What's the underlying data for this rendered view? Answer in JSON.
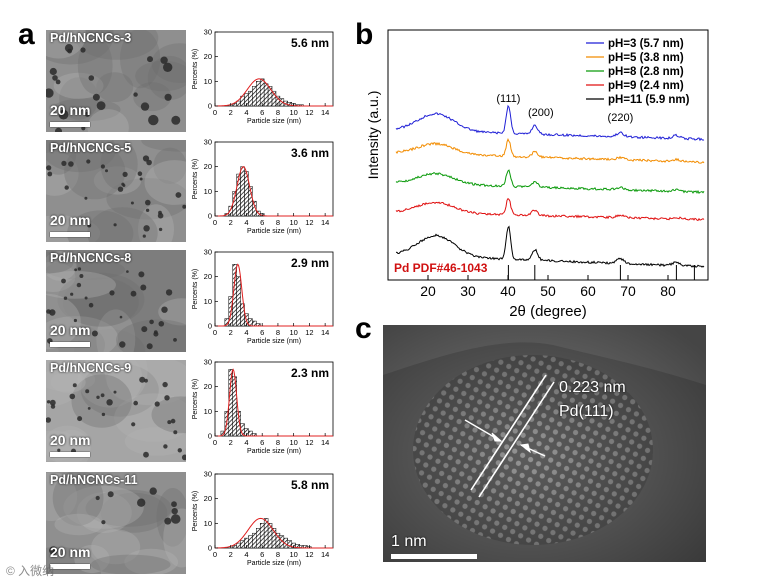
{
  "panels": {
    "a": "a",
    "b": "b",
    "c": "c"
  },
  "tem_images": [
    {
      "label": "Pd/hNCNCs-3",
      "scale": "20 nm"
    },
    {
      "label": "Pd/hNCNCs-5",
      "scale": "20 nm"
    },
    {
      "label": "Pd/hNCNCs-8",
      "scale": "20 nm"
    },
    {
      "label": "Pd/hNCNCs-9",
      "scale": "20 nm"
    },
    {
      "label": "Pd/hNCNCs-11",
      "scale": "20 nm"
    }
  ],
  "histogram_axis": {
    "xlabel": "Particle size (nm)",
    "ylabel": "Percents (%)",
    "x_ticks": [
      "0",
      "2",
      "4",
      "6",
      "8",
      "10",
      "12",
      "14"
    ],
    "y_ticks": [
      "0",
      "10",
      "20",
      "30"
    ]
  },
  "chart_data": [
    {
      "type": "bar",
      "title": "5.6 nm",
      "xlabel": "Particle size (nm)",
      "ylabel": "Percents (%)",
      "xlim": [
        0,
        15
      ],
      "ylim": [
        0,
        30
      ],
      "bin_width": 0.5,
      "bins": [
        2.5,
        3,
        3.5,
        4,
        4.5,
        5,
        5.5,
        6,
        6.5,
        7,
        7.5,
        8,
        8.5,
        9,
        9.5,
        10,
        10.5,
        11
      ],
      "values": [
        1,
        2,
        4,
        5,
        6,
        8,
        10,
        11,
        9,
        8,
        6,
        4,
        3,
        2,
        1.5,
        1,
        0.5,
        0.5
      ],
      "fit_mean": 5.6,
      "fit_sigma": 1.5,
      "fit_peak": 11
    },
    {
      "type": "bar",
      "title": "3.6 nm",
      "xlabel": "Particle size (nm)",
      "ylabel": "Percents (%)",
      "xlim": [
        0,
        15
      ],
      "ylim": [
        0,
        30
      ],
      "bin_width": 0.5,
      "bins": [
        1.5,
        2,
        2.5,
        3,
        3.5,
        4,
        4.5,
        5,
        5.5,
        6
      ],
      "values": [
        1,
        4,
        10,
        17,
        20,
        18,
        12,
        6,
        2,
        1
      ],
      "fit_mean": 3.6,
      "fit_sigma": 0.8,
      "fit_peak": 20
    },
    {
      "type": "bar",
      "title": "2.9 nm",
      "xlabel": "Particle size (nm)",
      "ylabel": "Percents (%)",
      "xlim": [
        0,
        15
      ],
      "ylim": [
        0,
        30
      ],
      "bin_width": 0.5,
      "bins": [
        1.5,
        2,
        2.5,
        3,
        3.5,
        4,
        4.5,
        5,
        5.5
      ],
      "values": [
        3,
        12,
        25,
        20,
        9,
        5,
        3,
        2,
        1
      ],
      "fit_mean": 2.9,
      "fit_sigma": 0.5,
      "fit_peak": 25
    },
    {
      "type": "bar",
      "title": "2.3 nm",
      "xlabel": "Particle size (nm)",
      "ylabel": "Percents (%)",
      "xlim": [
        0,
        15
      ],
      "ylim": [
        0,
        30
      ],
      "bin_width": 0.5,
      "bins": [
        1,
        1.5,
        2,
        2.5,
        3,
        3.5,
        4,
        4.5,
        5
      ],
      "values": [
        2,
        10,
        27,
        24,
        10,
        5,
        3,
        2,
        1
      ],
      "fit_mean": 2.3,
      "fit_sigma": 0.45,
      "fit_peak": 27
    },
    {
      "type": "bar",
      "title": "5.8 nm",
      "xlabel": "Particle size (nm)",
      "ylabel": "Percents (%)",
      "xlim": [
        0,
        15
      ],
      "ylim": [
        0,
        30
      ],
      "bin_width": 0.5,
      "bins": [
        2.5,
        3,
        3.5,
        4,
        4.5,
        5,
        5.5,
        6,
        6.5,
        7,
        7.5,
        8,
        8.5,
        9,
        9.5,
        10,
        10.5,
        11,
        11.5,
        12
      ],
      "values": [
        1,
        2,
        3,
        4,
        5,
        6,
        8,
        10,
        12,
        10,
        8,
        6,
        5,
        4,
        3,
        2,
        1.5,
        1,
        1,
        0.5
      ],
      "fit_mean": 5.8,
      "fit_sigma": 1.6,
      "fit_peak": 12
    },
    {
      "type": "line",
      "title": "",
      "xlabel": "2θ (degree)",
      "ylabel": "Intensity (a.u.)",
      "xlim": [
        10,
        90
      ],
      "x_ticks": [
        "20",
        "30",
        "40",
        "50",
        "60",
        "70",
        "80"
      ],
      "series": [
        {
          "name": "pH=3 (5.7 nm)",
          "color": "#1f1fd6",
          "offset": 4
        },
        {
          "name": "pH=5 (3.8 nm)",
          "color": "#f28c00",
          "offset": 3
        },
        {
          "name": "pH=8 (2.8 nm)",
          "color": "#0a9a0a",
          "offset": 2
        },
        {
          "name": "pH=9 (2.4 nm)",
          "color": "#e01010",
          "offset": 1
        },
        {
          "name": "pH=11 (5.9 nm)",
          "color": "#000000",
          "offset": 0
        }
      ],
      "peaks": [
        {
          "label": "(111)",
          "position": 40.1
        },
        {
          "label": "(200)",
          "position": 46.7
        },
        {
          "label": "(220)",
          "position": 68.1
        }
      ],
      "reference": {
        "label": "Pd PDF#46-1043",
        "color": "#d01010",
        "lines": [
          40.1,
          46.7,
          68.1,
          82.1,
          86.6
        ]
      }
    }
  ],
  "hrtem": {
    "d_spacing": "0.223 nm",
    "plane": "Pd(111)",
    "scale": "1 nm"
  },
  "watermark": "© 入微纳"
}
